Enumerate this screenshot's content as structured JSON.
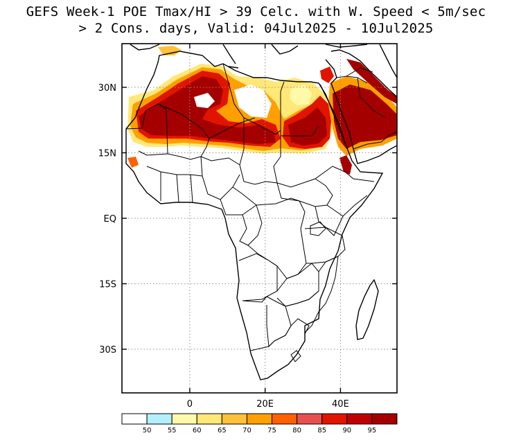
{
  "title": {
    "line1": "GEFS Week-1 POE Tmax/HI > 39 Celc. with W. Speed < 5m/sec",
    "line2": "> 2 Cons. days, Valid: 04Jul2025 - 10Jul2025"
  },
  "map": {
    "lon_range": [
      -18,
      55
    ],
    "lat_range": [
      -40,
      40
    ],
    "lat_ticks": [
      {
        "value": 30,
        "label": "30N"
      },
      {
        "value": 15,
        "label": "15N"
      },
      {
        "value": 0,
        "label": "EQ"
      },
      {
        "value": -15,
        "label": "15S"
      },
      {
        "value": -30,
        "label": "30S"
      }
    ],
    "lon_ticks": [
      {
        "value": 0,
        "label": "0"
      },
      {
        "value": 20,
        "label": "20E"
      },
      {
        "value": 40,
        "label": "40E"
      }
    ],
    "gridlines": "dotted"
  },
  "colorbar": {
    "labels": [
      "50",
      "55",
      "60",
      "65",
      "70",
      "75",
      "80",
      "85",
      "90",
      "95"
    ],
    "colors": [
      "#ffffff",
      "#b4f0fa",
      "#fffaaa",
      "#ffe878",
      "#ffc03c",
      "#ffa000",
      "#ff6000",
      "#e85050",
      "#e11400",
      "#c00000",
      "#a50000"
    ]
  }
}
